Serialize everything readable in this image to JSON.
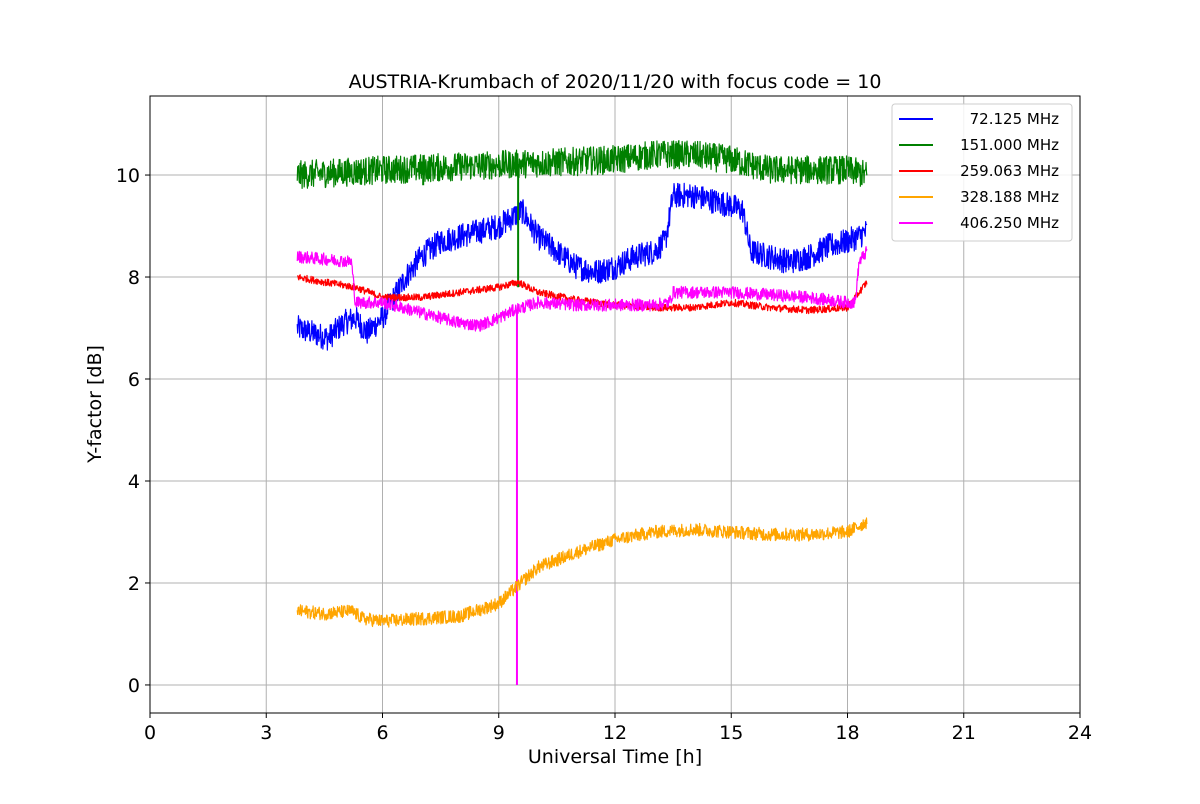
{
  "chart_data": {
    "type": "line",
    "title": "AUSTRIA-Krumbach of 2020/11/20 with focus code = 10",
    "xlabel": "Universal Time [h]",
    "ylabel": "Y-factor [dB]",
    "xlim": [
      0,
      24
    ],
    "ylim": [
      -0.55,
      11.55
    ],
    "xticks": [
      0,
      3,
      6,
      9,
      12,
      15,
      18,
      21,
      24
    ],
    "yticks": [
      0,
      2,
      4,
      6,
      8,
      10
    ],
    "grid": true,
    "legend_position": "top-right",
    "series": [
      {
        "name": "  72.125 MHz",
        "color": "#0000ff",
        "noise": 0.25,
        "x": [
          3.8,
          4.2,
          4.6,
          5.0,
          5.3,
          5.6,
          6.0,
          6.3,
          6.6,
          7.0,
          7.5,
          8.0,
          8.5,
          9.0,
          9.4,
          9.6,
          10.0,
          10.5,
          11.0,
          11.5,
          12.0,
          12.5,
          13.0,
          13.3,
          13.5,
          14.0,
          14.5,
          15.0,
          15.3,
          15.5,
          16.0,
          16.5,
          17.0,
          17.5,
          18.0,
          18.3,
          18.5
        ],
        "y": [
          7.0,
          6.9,
          6.8,
          7.1,
          7.2,
          6.9,
          7.2,
          7.6,
          8.0,
          8.4,
          8.7,
          8.8,
          8.9,
          9.0,
          9.2,
          9.3,
          8.8,
          8.5,
          8.2,
          8.1,
          8.2,
          8.4,
          8.5,
          8.7,
          9.6,
          9.6,
          9.5,
          9.4,
          9.3,
          8.5,
          8.4,
          8.3,
          8.4,
          8.6,
          8.7,
          8.8,
          8.9
        ]
      },
      {
        "name": "151.000 MHz",
        "color": "#008000",
        "noise": 0.28,
        "x": [
          3.8,
          6.0,
          9.0,
          12.0,
          13.0,
          14.0,
          15.0,
          16.0,
          17.0,
          18.0,
          18.5
        ],
        "y": [
          10.0,
          10.1,
          10.2,
          10.3,
          10.4,
          10.4,
          10.3,
          10.1,
          10.1,
          10.1,
          10.0
        ],
        "spikes": [
          {
            "x": 9.5,
            "y": 7.8
          },
          {
            "x": 7.05,
            "y": 9.8
          }
        ]
      },
      {
        "name": "259.063 MHz",
        "color": "#ff0000",
        "noise": 0.07,
        "x": [
          3.8,
          4.5,
          5.3,
          6.0,
          7.0,
          8.0,
          9.0,
          9.5,
          10.0,
          11.0,
          12.0,
          13.0,
          14.0,
          15.0,
          16.0,
          17.0,
          18.0,
          18.5
        ],
        "y": [
          8.0,
          7.9,
          7.8,
          7.6,
          7.6,
          7.7,
          7.8,
          7.9,
          7.7,
          7.55,
          7.45,
          7.4,
          7.4,
          7.5,
          7.4,
          7.35,
          7.4,
          7.9
        ]
      },
      {
        "name": "406.250 MHz",
        "color": "#ff00ff",
        "noise": 0.12,
        "x": [
          3.8,
          4.5,
          5.2,
          5.3,
          6.0,
          7.0,
          8.0,
          8.5,
          9.0,
          9.4,
          10.0,
          11.0,
          12.0,
          13.0,
          13.4,
          13.5,
          14.0,
          15.0,
          16.0,
          17.0,
          18.0,
          18.2,
          18.3,
          18.5
        ],
        "y": [
          8.4,
          8.35,
          8.3,
          7.5,
          7.5,
          7.3,
          7.1,
          7.05,
          7.2,
          7.35,
          7.5,
          7.45,
          7.45,
          7.45,
          7.5,
          7.7,
          7.7,
          7.7,
          7.65,
          7.6,
          7.5,
          7.5,
          8.3,
          8.5
        ],
        "spikes": [
          {
            "x": 9.47,
            "y": 0.0
          }
        ]
      },
      {
        "name": "328.188 MHz",
        "color": "#ffa500",
        "noise": 0.13,
        "x": [
          3.8,
          4.5,
          5.2,
          5.5,
          6.0,
          7.0,
          8.0,
          9.0,
          9.5,
          10.0,
          11.0,
          12.0,
          13.0,
          14.0,
          15.0,
          16.0,
          17.0,
          18.0,
          18.5
        ],
        "y": [
          1.45,
          1.4,
          1.45,
          1.3,
          1.25,
          1.3,
          1.35,
          1.6,
          1.95,
          2.3,
          2.6,
          2.85,
          3.0,
          3.05,
          3.0,
          2.95,
          2.95,
          3.0,
          3.2
        ]
      }
    ],
    "legend_order": [
      "  72.125 MHz",
      "151.000 MHz",
      "259.063 MHz",
      "328.188 MHz",
      "406.250 MHz"
    ]
  }
}
